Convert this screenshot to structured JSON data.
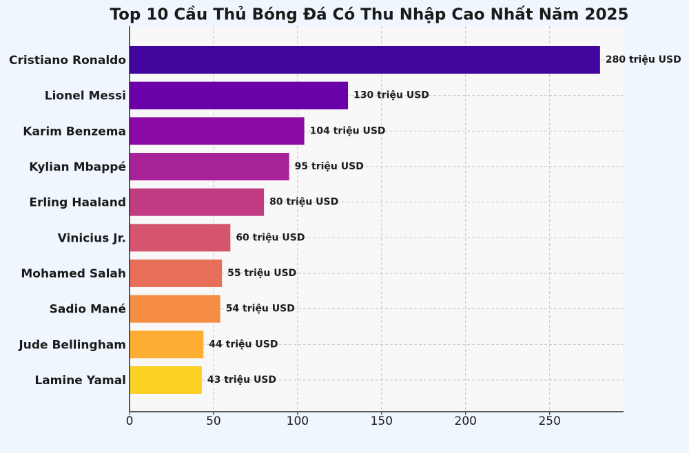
{
  "chart_data": {
    "type": "barh",
    "title": "Top 10 Cầu Thủ Bóng Đá Có Thu Nhập Cao Nhất Năm 2025",
    "categories": [
      "Cristiano Ronaldo",
      "Lionel Messi",
      "Karim Benzema",
      "Kylian Mbappé",
      "Erling Haaland",
      "Vinicius Jr.",
      "Mohamed Salah",
      "Sadio Mané",
      "Jude Bellingham",
      "Lamine Yamal"
    ],
    "values": [
      280,
      130,
      104,
      95,
      80,
      60,
      55,
      54,
      44,
      43
    ],
    "value_labels": [
      "280 triệu USD",
      "130 triệu USD",
      "104 triệu USD",
      "95 triệu USD",
      "80 triệu USD",
      "60 triệu USD",
      "55 triệu USD",
      "54 triệu USD",
      "44 triệu USD",
      "43 triệu USD"
    ],
    "colors": [
      "#41049d",
      "#6a00a8",
      "#8b0aa5",
      "#a72197",
      "#c13b82",
      "#d5546e",
      "#e76f5a",
      "#f68d45",
      "#fdad32",
      "#fbd124"
    ],
    "xlim": [
      0,
      294
    ],
    "xticks": [
      0,
      50,
      100,
      150,
      200,
      250
    ],
    "grid": true
  }
}
